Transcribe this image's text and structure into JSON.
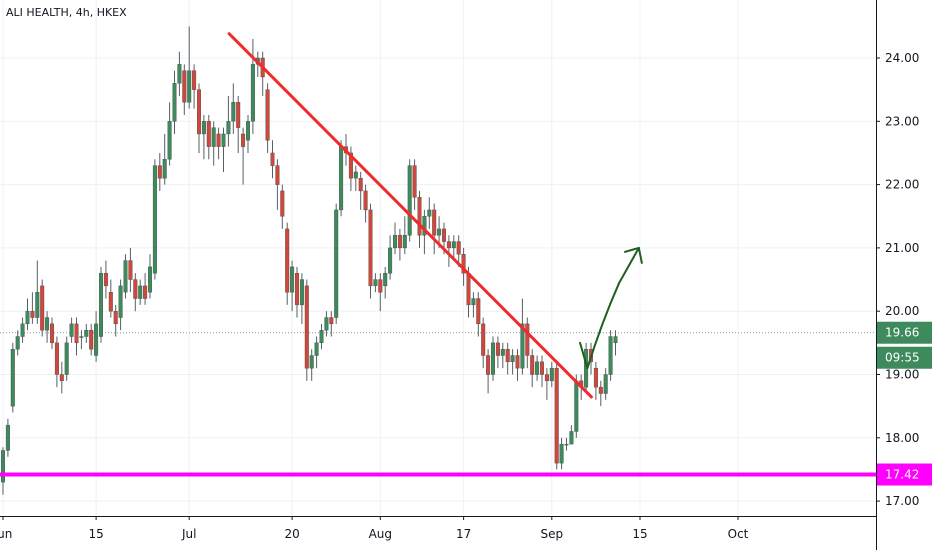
{
  "header": {
    "symbol": "ALI HEALTH, 4h, HKEX"
  },
  "colors": {
    "up": "#26a69a",
    "up_body": "#3d8a5c",
    "down": "#d0473c",
    "grid": "#eef0f3",
    "axis_line": "#131722",
    "trendline": "#ef2b2b",
    "support": "#ff00ff",
    "arrow": "#1f5f1f",
    "price_tag": "#3d8a5c"
  },
  "chart_data": {
    "type": "candlestick",
    "title": "ALI HEALTH, 4h, HKEX",
    "y_ticks": [
      "17.00",
      "18.00",
      "19.00",
      "20.00",
      "21.00",
      "22.00",
      "23.00",
      "24.00"
    ],
    "ylim": [
      16.85,
      24.55
    ],
    "x_ticks": [
      {
        "label": "Jun",
        "idx": 0
      },
      {
        "label": "15",
        "idx": 19
      },
      {
        "label": "Jul",
        "idx": 38
      },
      {
        "label": "20",
        "idx": 59
      },
      {
        "label": "Aug",
        "idx": 77
      },
      {
        "label": "17",
        "idx": 94
      },
      {
        "label": "Sep",
        "idx": 112
      },
      {
        "label": "15",
        "idx": 130
      },
      {
        "label": "Oct",
        "idx": 150
      }
    ],
    "candles": [
      [
        17.3,
        17.8,
        17.85,
        17.1
      ],
      [
        17.8,
        18.2,
        18.3,
        17.7
      ],
      [
        18.5,
        19.4,
        19.5,
        18.4
      ],
      [
        19.4,
        19.6,
        19.7,
        19.3
      ],
      [
        19.6,
        19.8,
        19.9,
        19.5
      ],
      [
        19.8,
        20.0,
        20.2,
        19.7
      ],
      [
        20.0,
        19.9,
        20.3,
        19.8
      ],
      [
        19.9,
        20.3,
        20.8,
        19.8
      ],
      [
        20.4,
        19.7,
        20.5,
        19.6
      ],
      [
        19.7,
        19.9,
        20.0,
        19.5
      ],
      [
        19.8,
        19.5,
        19.9,
        19.4
      ],
      [
        19.5,
        19.0,
        19.6,
        18.8
      ],
      [
        19.0,
        18.9,
        19.2,
        18.7
      ],
      [
        19.0,
        19.5,
        19.6,
        18.9
      ],
      [
        19.6,
        19.8,
        19.9,
        19.5
      ],
      [
        19.8,
        19.5,
        19.9,
        19.3
      ],
      [
        19.6,
        19.6,
        19.7,
        19.4
      ],
      [
        19.6,
        19.7,
        19.8,
        19.5
      ],
      [
        19.7,
        19.4,
        19.8,
        19.3
      ],
      [
        19.3,
        19.8,
        20.0,
        19.2
      ],
      [
        19.6,
        20.6,
        20.7,
        19.5
      ],
      [
        20.6,
        20.4,
        20.8,
        20.2
      ],
      [
        20.3,
        20.0,
        20.5,
        19.9
      ],
      [
        20.0,
        19.8,
        20.1,
        19.6
      ],
      [
        19.9,
        20.4,
        20.5,
        19.7
      ],
      [
        20.3,
        20.8,
        20.9,
        20.2
      ],
      [
        20.8,
        20.5,
        21.0,
        20.3
      ],
      [
        20.5,
        20.2,
        20.6,
        20.0
      ],
      [
        20.2,
        20.4,
        20.5,
        20.1
      ],
      [
        20.4,
        20.2,
        20.6,
        20.1
      ],
      [
        20.3,
        20.7,
        20.9,
        20.2
      ],
      [
        20.6,
        22.3,
        22.4,
        20.5
      ],
      [
        22.3,
        22.1,
        22.5,
        21.9
      ],
      [
        22.1,
        22.4,
        22.8,
        22.0
      ],
      [
        22.4,
        23.0,
        23.3,
        22.3
      ],
      [
        23.0,
        23.6,
        23.8,
        22.8
      ],
      [
        23.6,
        23.9,
        24.1,
        23.4
      ],
      [
        23.8,
        23.3,
        23.9,
        23.1
      ],
      [
        23.3,
        23.8,
        24.5,
        23.2
      ],
      [
        23.8,
        23.5,
        23.9,
        23.2
      ],
      [
        23.5,
        22.8,
        23.6,
        22.5
      ],
      [
        22.8,
        23.0,
        23.1,
        22.4
      ],
      [
        23.0,
        22.6,
        23.1,
        22.4
      ],
      [
        22.6,
        22.9,
        23.0,
        22.3
      ],
      [
        22.8,
        22.6,
        22.9,
        22.4
      ],
      [
        22.6,
        22.8,
        22.9,
        22.2
      ],
      [
        22.8,
        23.0,
        23.4,
        22.6
      ],
      [
        23.0,
        23.3,
        23.6,
        22.8
      ],
      [
        23.3,
        22.9,
        23.4,
        22.5
      ],
      [
        22.8,
        22.6,
        22.9,
        22.0
      ],
      [
        22.7,
        23.0,
        23.1,
        22.5
      ],
      [
        23.0,
        23.9,
        24.3,
        22.8
      ],
      [
        23.9,
        24.0,
        24.1,
        23.7
      ],
      [
        24.0,
        23.7,
        24.1,
        23.4
      ],
      [
        23.5,
        22.7,
        23.6,
        22.5
      ],
      [
        22.5,
        22.3,
        22.7,
        22.1
      ],
      [
        22.3,
        22.0,
        22.4,
        21.6
      ],
      [
        21.9,
        21.5,
        22.0,
        21.3
      ],
      [
        21.3,
        20.3,
        21.4,
        20.1
      ],
      [
        20.3,
        20.7,
        20.8,
        20.0
      ],
      [
        20.6,
        20.1,
        20.7,
        19.9
      ],
      [
        20.1,
        20.5,
        20.6,
        19.8
      ],
      [
        20.4,
        19.1,
        20.5,
        18.9
      ],
      [
        19.1,
        19.3,
        19.4,
        18.9
      ],
      [
        19.3,
        19.5,
        19.6,
        19.1
      ],
      [
        19.5,
        19.7,
        19.8,
        19.4
      ],
      [
        19.7,
        19.9,
        20.0,
        19.6
      ],
      [
        19.9,
        19.8,
        20.0,
        19.6
      ],
      [
        19.9,
        21.6,
        21.7,
        19.8
      ],
      [
        21.6,
        22.6,
        22.7,
        21.5
      ],
      [
        22.6,
        22.5,
        22.8,
        22.3
      ],
      [
        22.5,
        22.1,
        22.6,
        21.9
      ],
      [
        22.1,
        22.2,
        22.3,
        21.9
      ],
      [
        22.1,
        21.9,
        22.2,
        21.6
      ],
      [
        21.9,
        21.6,
        22.0,
        21.4
      ],
      [
        21.6,
        20.4,
        21.7,
        20.2
      ],
      [
        20.4,
        20.5,
        20.6,
        20.3
      ],
      [
        20.5,
        20.3,
        20.6,
        20.0
      ],
      [
        20.4,
        20.6,
        20.7,
        20.2
      ],
      [
        20.6,
        21.0,
        21.2,
        20.5
      ],
      [
        21.0,
        21.2,
        21.4,
        20.9
      ],
      [
        21.2,
        21.0,
        21.3,
        20.8
      ],
      [
        21.0,
        21.2,
        21.5,
        20.9
      ],
      [
        21.2,
        22.3,
        22.4,
        21.1
      ],
      [
        22.3,
        21.8,
        22.4,
        21.6
      ],
      [
        21.8,
        21.2,
        21.9,
        21.0
      ],
      [
        21.2,
        21.5,
        21.6,
        20.9
      ],
      [
        21.5,
        21.6,
        21.8,
        21.3
      ],
      [
        21.6,
        21.2,
        21.7,
        20.9
      ],
      [
        21.2,
        21.3,
        21.5,
        21.0
      ],
      [
        21.3,
        21.1,
        21.4,
        20.9
      ],
      [
        21.1,
        21.0,
        21.2,
        20.7
      ],
      [
        21.0,
        21.1,
        21.2,
        20.8
      ],
      [
        21.1,
        20.9,
        21.2,
        20.7
      ],
      [
        20.9,
        20.6,
        21.0,
        20.4
      ],
      [
        20.6,
        20.1,
        20.7,
        19.9
      ],
      [
        20.1,
        20.2,
        20.3,
        19.9
      ],
      [
        20.2,
        19.8,
        20.3,
        19.6
      ],
      [
        19.8,
        19.3,
        19.9,
        19.1
      ],
      [
        19.3,
        19.0,
        19.4,
        18.7
      ],
      [
        19.0,
        19.5,
        19.6,
        18.9
      ],
      [
        19.5,
        19.3,
        19.6,
        19.1
      ],
      [
        19.3,
        19.4,
        19.5,
        19.1
      ],
      [
        19.4,
        19.2,
        19.5,
        19.0
      ],
      [
        19.2,
        19.3,
        19.4,
        19.0
      ],
      [
        19.3,
        19.1,
        19.4,
        18.9
      ],
      [
        19.1,
        19.8,
        20.2,
        19.0
      ],
      [
        19.8,
        19.3,
        19.9,
        19.1
      ],
      [
        19.3,
        19.0,
        19.4,
        18.8
      ],
      [
        19.0,
        19.2,
        19.3,
        18.9
      ],
      [
        19.2,
        19.0,
        19.3,
        18.8
      ],
      [
        19.0,
        18.9,
        19.1,
        18.6
      ],
      [
        18.9,
        19.1,
        19.2,
        18.8
      ],
      [
        19.1,
        17.6,
        19.2,
        17.5
      ],
      [
        17.6,
        17.9,
        18.0,
        17.5
      ],
      [
        17.9,
        17.9,
        18.0,
        17.8
      ],
      [
        17.9,
        18.1,
        18.2,
        17.9
      ],
      [
        18.1,
        18.9,
        19.0,
        18.0
      ],
      [
        18.9,
        18.8,
        19.0,
        18.6
      ],
      [
        18.8,
        19.4,
        19.5,
        18.7
      ],
      [
        19.4,
        19.2,
        19.5,
        19.0
      ],
      [
        19.1,
        18.8,
        19.2,
        18.6
      ],
      [
        18.8,
        18.7,
        18.9,
        18.5
      ],
      [
        18.7,
        19.0,
        19.1,
        18.6
      ],
      [
        19.0,
        19.6,
        19.7,
        18.9
      ],
      [
        19.5,
        19.6,
        19.7,
        19.3
      ]
    ],
    "current_price": 19.66,
    "support_level": 17.42,
    "trendline": {
      "start_idx": 39,
      "start_price": 24.4,
      "end_idx": 116,
      "end_price": 18.85
    },
    "projection": [
      {
        "idx": 114.5,
        "price": 19.5
      },
      {
        "idx": 116.0,
        "price": 19.1
      },
      {
        "idx": 118.5,
        "price": 19.6
      },
      {
        "idx": 122.5,
        "price": 20.45
      },
      {
        "idx": 126.5,
        "price": 21.0
      }
    ],
    "price_tag_label": "19.66",
    "countdown_label": "09:55",
    "support_label": "17.42"
  }
}
